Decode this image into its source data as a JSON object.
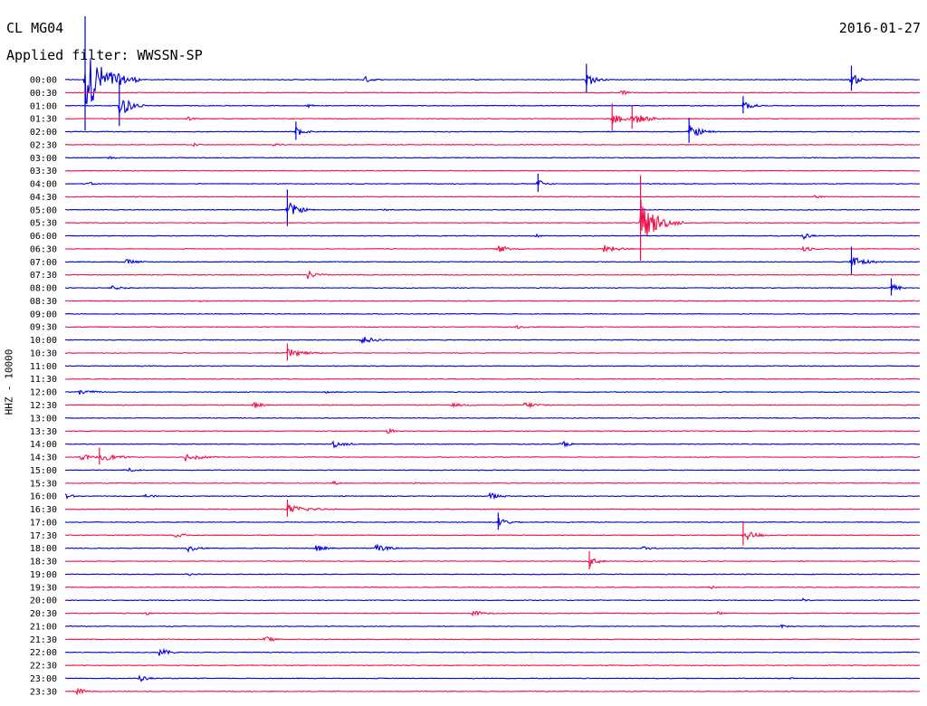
{
  "header": {
    "station": "CL MG04",
    "date": "2016-01-27",
    "filter": "Applied filter: WWSSN-SP"
  },
  "chart_data": {
    "type": "line",
    "title": "CL MG04",
    "subtitle": "Applied filter: WWSSN-SP",
    "ylabel": "HHZ - 10000",
    "row_labels": [
      "00:00",
      "00:30",
      "01:00",
      "01:30",
      "02:00",
      "02:30",
      "03:00",
      "03:30",
      "04:00",
      "04:30",
      "05:00",
      "05:30",
      "06:00",
      "06:30",
      "07:00",
      "07:30",
      "08:00",
      "08:30",
      "09:00",
      "09:30",
      "10:00",
      "10:30",
      "11:00",
      "11:30",
      "12:00",
      "12:30",
      "13:00",
      "13:30",
      "14:00",
      "14:30",
      "15:00",
      "15:30",
      "16:00",
      "16:30",
      "17:00",
      "17:30",
      "18:00",
      "18:30",
      "19:00",
      "19:30",
      "20:00",
      "20:30",
      "21:00",
      "21:30",
      "22:00",
      "22:30",
      "23:00",
      "23:30"
    ],
    "colors": [
      "#0000e0",
      "#f0104a"
    ],
    "minutes_per_row": 30,
    "events": [
      {
        "row": 0,
        "minute": 0.7,
        "amp": 10,
        "dur": 2
      },
      {
        "row": 0,
        "minute": 10.5,
        "amp": 1.2,
        "dur": 0.8
      },
      {
        "row": 0,
        "minute": 18.3,
        "amp": 2.5,
        "dur": 0.8
      },
      {
        "row": 0,
        "minute": 27.6,
        "amp": 2.2,
        "dur": 0.8
      },
      {
        "row": 1,
        "minute": 19.5,
        "amp": 1.2,
        "dur": 0.6
      },
      {
        "row": 2,
        "minute": 1.9,
        "amp": 4,
        "dur": 1
      },
      {
        "row": 2,
        "minute": 8.5,
        "amp": 0.7,
        "dur": 0.6
      },
      {
        "row": 2,
        "minute": 23.8,
        "amp": 1.5,
        "dur": 1
      },
      {
        "row": 3,
        "minute": 4.3,
        "amp": 0.8,
        "dur": 0.5
      },
      {
        "row": 3,
        "minute": 19.2,
        "amp": 2.4,
        "dur": 1
      },
      {
        "row": 3,
        "minute": 19.9,
        "amp": 2,
        "dur": 1.5
      },
      {
        "row": 4,
        "minute": 8.1,
        "amp": 1.6,
        "dur": 0.8
      },
      {
        "row": 4,
        "minute": 21.9,
        "amp": 2.2,
        "dur": 1.2
      },
      {
        "row": 5,
        "minute": 4.5,
        "amp": 0.8,
        "dur": 0.5
      },
      {
        "row": 5,
        "minute": 7.3,
        "amp": 1.1,
        "dur": 0.6
      },
      {
        "row": 6,
        "minute": 1.5,
        "amp": 0.7,
        "dur": 0.7
      },
      {
        "row": 8,
        "minute": 0.8,
        "amp": 0.8,
        "dur": 0.6
      },
      {
        "row": 8,
        "minute": 16.6,
        "amp": 1.6,
        "dur": 0.7
      },
      {
        "row": 9,
        "minute": 26.3,
        "amp": 0.9,
        "dur": 0.5
      },
      {
        "row": 10,
        "minute": 7.8,
        "amp": 3.2,
        "dur": 1
      },
      {
        "row": 10,
        "minute": 11.1,
        "amp": 0.6,
        "dur": 0.5
      },
      {
        "row": 11,
        "minute": 20.2,
        "amp": 7.5,
        "dur": 1.5
      },
      {
        "row": 12,
        "minute": 16.5,
        "amp": 0.7,
        "dur": 0.6
      },
      {
        "row": 12,
        "minute": 25.9,
        "amp": 1.2,
        "dur": 0.8
      },
      {
        "row": 13,
        "minute": 15.2,
        "amp": 1.2,
        "dur": 1.2
      },
      {
        "row": 13,
        "minute": 18.9,
        "amp": 1.3,
        "dur": 1.5
      },
      {
        "row": 13,
        "minute": 25.9,
        "amp": 1.3,
        "dur": 0.8
      },
      {
        "row": 14,
        "minute": 2.1,
        "amp": 1,
        "dur": 1.2
      },
      {
        "row": 14,
        "minute": 27.6,
        "amp": 2.4,
        "dur": 1.2
      },
      {
        "row": 15,
        "minute": 8.5,
        "amp": 1.4,
        "dur": 1
      },
      {
        "row": 16,
        "minute": 1.6,
        "amp": 0.8,
        "dur": 1.2
      },
      {
        "row": 16,
        "minute": 29,
        "amp": 1.5,
        "dur": 0.8
      },
      {
        "row": 17,
        "minute": 4.7,
        "amp": 0.5,
        "dur": 0.8
      },
      {
        "row": 19,
        "minute": 15.8,
        "amp": 0.6,
        "dur": 1.5
      },
      {
        "row": 20,
        "minute": 10.4,
        "amp": 1.2,
        "dur": 1.5
      },
      {
        "row": 21,
        "minute": 7.8,
        "amp": 1.5,
        "dur": 1.5
      },
      {
        "row": 24,
        "minute": 0.5,
        "amp": 1.2,
        "dur": 1.2
      },
      {
        "row": 24,
        "minute": 9.1,
        "amp": 0.6,
        "dur": 1.2
      },
      {
        "row": 25,
        "minute": 6.6,
        "amp": 1.3,
        "dur": 0.8
      },
      {
        "row": 25,
        "minute": 13.5,
        "amp": 0.6,
        "dur": 2
      },
      {
        "row": 25,
        "minute": 16.1,
        "amp": 1,
        "dur": 1.6
      },
      {
        "row": 27,
        "minute": 11.3,
        "amp": 1,
        "dur": 0.8
      },
      {
        "row": 28,
        "minute": 9.4,
        "amp": 1.2,
        "dur": 1.2
      },
      {
        "row": 28,
        "minute": 17.4,
        "amp": 1.2,
        "dur": 0.8
      },
      {
        "row": 29,
        "minute": 0.5,
        "amp": 1.3,
        "dur": 1
      },
      {
        "row": 29,
        "minute": 1.2,
        "amp": 1.5,
        "dur": 1.5
      },
      {
        "row": 29,
        "minute": 4.2,
        "amp": 1.4,
        "dur": 1.6
      },
      {
        "row": 30,
        "minute": 2.1,
        "amp": 0.9,
        "dur": 1
      },
      {
        "row": 31,
        "minute": 9.4,
        "amp": 0.7,
        "dur": 0.7
      },
      {
        "row": 31,
        "minute": 12.2,
        "amp": 0.5,
        "dur": 0.8
      },
      {
        "row": 32,
        "minute": 0,
        "amp": 1,
        "dur": 0.8
      },
      {
        "row": 32,
        "minute": 2.8,
        "amp": 0.8,
        "dur": 0.8
      },
      {
        "row": 32,
        "minute": 14.9,
        "amp": 1.2,
        "dur": 1
      },
      {
        "row": 33,
        "minute": 7.8,
        "amp": 1.5,
        "dur": 2
      },
      {
        "row": 34,
        "minute": 15.2,
        "amp": 1.5,
        "dur": 1
      },
      {
        "row": 35,
        "minute": 3.8,
        "amp": 1.2,
        "dur": 1
      },
      {
        "row": 35,
        "minute": 23.8,
        "amp": 2,
        "dur": 1.2
      },
      {
        "row": 36,
        "minute": 4.3,
        "amp": 1.3,
        "dur": 1
      },
      {
        "row": 36,
        "minute": 8.8,
        "amp": 1.2,
        "dur": 1
      },
      {
        "row": 36,
        "minute": 10.9,
        "amp": 1.3,
        "dur": 1.2
      },
      {
        "row": 36,
        "minute": 20.2,
        "amp": 0.8,
        "dur": 1.2
      },
      {
        "row": 37,
        "minute": 18.4,
        "amp": 1.6,
        "dur": 0.8
      },
      {
        "row": 38,
        "minute": 4.3,
        "amp": 0.7,
        "dur": 0.6
      },
      {
        "row": 39,
        "minute": 22.6,
        "amp": 0.8,
        "dur": 0.6
      },
      {
        "row": 40,
        "minute": 25.9,
        "amp": 0.7,
        "dur": 0.6
      },
      {
        "row": 41,
        "minute": 2.8,
        "amp": 0.8,
        "dur": 0.7
      },
      {
        "row": 41,
        "minute": 14.3,
        "amp": 1,
        "dur": 1.2
      },
      {
        "row": 41,
        "minute": 22.9,
        "amp": 0.6,
        "dur": 0.7
      },
      {
        "row": 42,
        "minute": 25.1,
        "amp": 0.5,
        "dur": 1.2
      },
      {
        "row": 43,
        "minute": 7,
        "amp": 1.3,
        "dur": 0.8
      },
      {
        "row": 44,
        "minute": 3.3,
        "amp": 1.4,
        "dur": 1
      },
      {
        "row": 44,
        "minute": 29.6,
        "amp": 0.7,
        "dur": 0.4
      },
      {
        "row": 46,
        "minute": 2.6,
        "amp": 1.2,
        "dur": 0.8
      },
      {
        "row": 46,
        "minute": 25.4,
        "amp": 0.5,
        "dur": 0.6
      },
      {
        "row": 47,
        "minute": 0.4,
        "amp": 1.4,
        "dur": 0.8
      }
    ]
  }
}
